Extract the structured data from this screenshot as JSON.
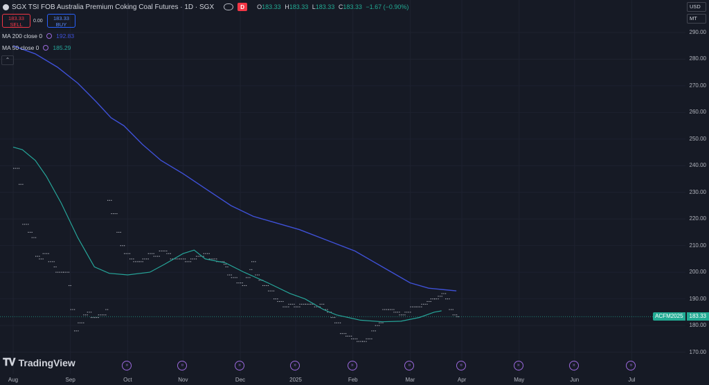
{
  "header": {
    "title": "SGX TSI FOB Australia Premium Coking Coal Futures · 1D · SGX",
    "d_badge": "D",
    "ohlc": {
      "o_label": "O",
      "o_value": "183.33",
      "h_label": "H",
      "h_value": "183.33",
      "l_label": "L",
      "l_value": "183.33",
      "c_label": "C",
      "c_value": "183.33",
      "change": "−1.67 (−0.90%)"
    }
  },
  "trade": {
    "sell_price": "183.33",
    "sell_label": "SELL",
    "spread": "0.00",
    "buy_price": "183.33",
    "buy_label": "BUY"
  },
  "indicators": [
    {
      "label": "MA 200 close 0",
      "value": "192.83",
      "color": "#3f51d8"
    },
    {
      "label": "MA 50 close 0",
      "value": "185.29",
      "color": "#26a69a"
    }
  ],
  "collapse_icon": "chevron-up",
  "axis": {
    "currency": "USD",
    "unit": "MT",
    "y_ticks": [
      "290.00",
      "280.00",
      "270.00",
      "260.00",
      "250.00",
      "240.00",
      "230.00",
      "220.00",
      "210.00",
      "200.00",
      "190.00",
      "180.00",
      "170.00"
    ],
    "x_ticks": [
      "Aug",
      "Sep",
      "Oct",
      "Nov",
      "Dec",
      "2025",
      "Feb",
      "Mar",
      "Apr",
      "May",
      "Jun",
      "Jul"
    ]
  },
  "last_price": {
    "symbol": "ACFM2025",
    "value": "183.33",
    "color": "#22ab94"
  },
  "logo_text": "TradingView",
  "colors": {
    "background": "#161a25",
    "ma200": "#3f51d8",
    "ma50": "#26a69a",
    "price_dots": "#b2b5be",
    "grid": "#1e2230"
  },
  "chart_data": {
    "type": "line",
    "ylim": [
      166,
      296
    ],
    "x_units": "days since Aug 1 2024",
    "series": [
      {
        "name": "MA 200 close 0",
        "points": [
          [
            0,
            285
          ],
          [
            12,
            282
          ],
          [
            24,
            277
          ],
          [
            35,
            271
          ],
          [
            45,
            264
          ],
          [
            53,
            258
          ],
          [
            60,
            255
          ],
          [
            70,
            248
          ],
          [
            80,
            242
          ],
          [
            92,
            237
          ],
          [
            105,
            231
          ],
          [
            118,
            225
          ],
          [
            130,
            221
          ],
          [
            140,
            219
          ],
          [
            155,
            216
          ],
          [
            170,
            212
          ],
          [
            185,
            208
          ],
          [
            195,
            204
          ],
          [
            205,
            200
          ],
          [
            215,
            196
          ],
          [
            225,
            194
          ],
          [
            240,
            193
          ]
        ]
      },
      {
        "name": "MA 50 close 0",
        "points": [
          [
            0,
            247
          ],
          [
            5,
            246
          ],
          [
            12,
            242
          ],
          [
            18,
            236
          ],
          [
            26,
            226
          ],
          [
            35,
            213
          ],
          [
            44,
            202
          ],
          [
            52,
            199.6
          ],
          [
            62,
            199
          ],
          [
            74,
            200
          ],
          [
            82,
            203
          ],
          [
            92,
            207
          ],
          [
            98,
            208.3
          ],
          [
            104,
            205
          ],
          [
            115,
            203.5
          ],
          [
            125,
            200
          ],
          [
            138,
            196
          ],
          [
            150,
            192
          ],
          [
            158,
            190
          ],
          [
            168,
            186
          ],
          [
            175,
            184
          ],
          [
            188,
            182
          ],
          [
            200,
            181.4
          ],
          [
            210,
            181.6
          ],
          [
            220,
            183
          ],
          [
            228,
            185
          ],
          [
            232,
            185.5
          ]
        ]
      },
      {
        "name": "Price",
        "points": [
          [
            0,
            239
          ],
          [
            3,
            233
          ],
          [
            5,
            218
          ],
          [
            8,
            215
          ],
          [
            10,
            213
          ],
          [
            12,
            206
          ],
          [
            14,
            205
          ],
          [
            16,
            207
          ],
          [
            19,
            204
          ],
          [
            22,
            202
          ],
          [
            23,
            200
          ],
          [
            27,
            200
          ],
          [
            30,
            195
          ],
          [
            31,
            186
          ],
          [
            33,
            178
          ],
          [
            35,
            181
          ],
          [
            38,
            184
          ],
          [
            40,
            185
          ],
          [
            42,
            183
          ],
          [
            44,
            183
          ],
          [
            46,
            184
          ],
          [
            50,
            186
          ],
          [
            51,
            227
          ],
          [
            53,
            222
          ],
          [
            56,
            215
          ],
          [
            58,
            210
          ],
          [
            60,
            207
          ],
          [
            63,
            205
          ],
          [
            65,
            204
          ],
          [
            68,
            204
          ],
          [
            70,
            205
          ],
          [
            73,
            207
          ],
          [
            76,
            206
          ],
          [
            79,
            208
          ],
          [
            83,
            207
          ],
          [
            85,
            205
          ],
          [
            87,
            205
          ],
          [
            90,
            205
          ],
          [
            93,
            204
          ],
          [
            96,
            205
          ],
          [
            99,
            206
          ],
          [
            103,
            207
          ],
          [
            106,
            205
          ],
          [
            110,
            204
          ],
          [
            114,
            203
          ],
          [
            115,
            202
          ],
          [
            116,
            199
          ],
          [
            118,
            198
          ],
          [
            121,
            196
          ],
          [
            124,
            195
          ],
          [
            126,
            198
          ],
          [
            128,
            201
          ],
          [
            129,
            204
          ],
          [
            131,
            199
          ],
          [
            133,
            197
          ],
          [
            135,
            195
          ],
          [
            138,
            193
          ],
          [
            141,
            190
          ],
          [
            143,
            189
          ],
          [
            146,
            187
          ],
          [
            149,
            188
          ],
          [
            152,
            187
          ],
          [
            155,
            188
          ],
          [
            158,
            188
          ],
          [
            161,
            188
          ],
          [
            163,
            187
          ],
          [
            166,
            188
          ],
          [
            168,
            186
          ],
          [
            170,
            185
          ],
          [
            172,
            183
          ],
          [
            174,
            181
          ],
          [
            177,
            177
          ],
          [
            180,
            176
          ],
          [
            183,
            175
          ],
          [
            186,
            174
          ],
          [
            189,
            174
          ],
          [
            191,
            175
          ],
          [
            194,
            178
          ],
          [
            196,
            180
          ],
          [
            198,
            181
          ],
          [
            200,
            186
          ],
          [
            203,
            186
          ],
          [
            206,
            185
          ],
          [
            209,
            184
          ],
          [
            212,
            185
          ],
          [
            215,
            187
          ],
          [
            218,
            187
          ],
          [
            221,
            188
          ],
          [
            224,
            189
          ],
          [
            226,
            190
          ],
          [
            228,
            190
          ],
          [
            230,
            191
          ],
          [
            232,
            192
          ],
          [
            234,
            190
          ],
          [
            236,
            186
          ],
          [
            238,
            184
          ],
          [
            240,
            183.3
          ]
        ]
      }
    ]
  }
}
